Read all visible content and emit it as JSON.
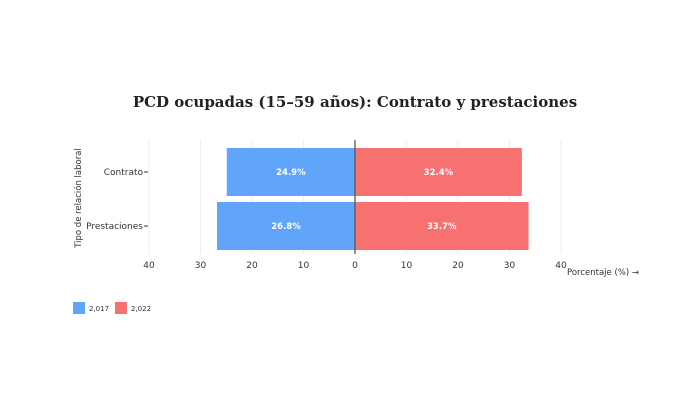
{
  "chart_data": {
    "type": "bar",
    "orientation": "horizontal-diverging",
    "title": "PCD ocupadas (15–59 años): Contrato y prestaciones",
    "xlabel": "Porcentaje (%) →",
    "ylabel": "Tipo de relación laboral",
    "categories": [
      "Contrato",
      "Prestaciones"
    ],
    "series": [
      {
        "name": "2,017",
        "values": [
          24.9,
          26.8
        ],
        "labels": [
          "24.9%",
          "26.8%"
        ],
        "color": "#60a5fa",
        "side": "left"
      },
      {
        "name": "2,022",
        "values": [
          32.4,
          33.7
        ],
        "labels": [
          "32.4%",
          "33.7%"
        ],
        "color": "#f87171",
        "side": "right"
      }
    ],
    "xlim": [
      -40,
      40
    ],
    "xticks": [
      -40,
      -30,
      -20,
      -10,
      0,
      10,
      20,
      30,
      40
    ],
    "xtick_labels": [
      "40",
      "30",
      "20",
      "10",
      "0",
      "10",
      "20",
      "30",
      "40"
    ],
    "grid": true,
    "legend_position": "bottom-left"
  }
}
